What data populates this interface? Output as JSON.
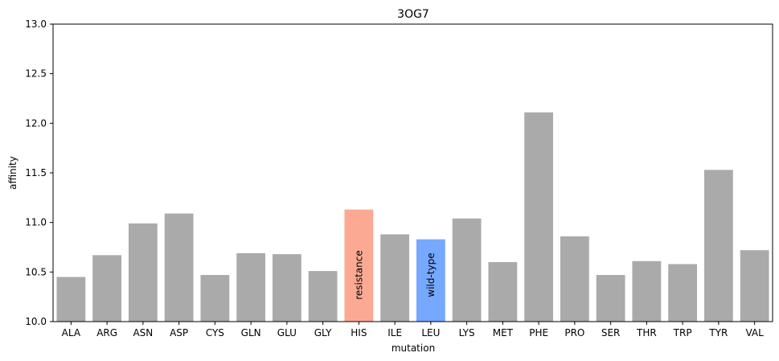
{
  "chart_data": {
    "type": "bar",
    "title": "3OG7",
    "xlabel": "mutation",
    "ylabel": "affinity",
    "ylim": [
      10.0,
      13.0
    ],
    "yticks": [
      "10.0",
      "10.5",
      "11.0",
      "11.5",
      "12.0",
      "12.5",
      "13.0"
    ],
    "categories": [
      "ALA",
      "ARG",
      "ASN",
      "ASP",
      "CYS",
      "GLN",
      "GLU",
      "GLY",
      "HIS",
      "ILE",
      "LEU",
      "LYS",
      "MET",
      "PHE",
      "PRO",
      "SER",
      "THR",
      "TRP",
      "TYR",
      "VAL"
    ],
    "values": [
      10.45,
      10.67,
      10.99,
      11.09,
      10.47,
      10.69,
      10.68,
      10.51,
      11.13,
      10.88,
      10.83,
      11.04,
      10.6,
      12.11,
      10.86,
      10.47,
      10.61,
      10.58,
      11.53,
      10.72
    ],
    "colors": {
      "default": "#aaaaaa",
      "resistance": "#fca994",
      "wild_type": "#77a8ff"
    },
    "highlights": [
      {
        "category": "HIS",
        "label": "resistance",
        "color_key": "resistance"
      },
      {
        "category": "LEU",
        "label": "wild-type",
        "color_key": "wild_type"
      }
    ],
    "grid": false
  }
}
